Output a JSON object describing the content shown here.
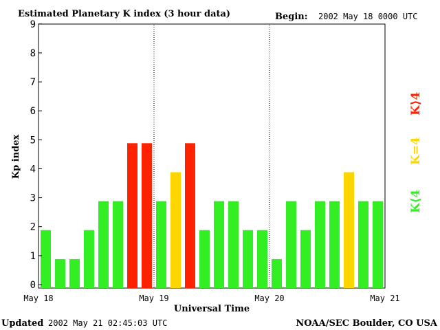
{
  "chart_data": {
    "type": "bar",
    "title": "Estimated Planetary K index (3 hour data)",
    "begin_label": "Begin:",
    "begin_value": "2002 May 18 0000 UTC",
    "ylabel": "Kp index",
    "xlabel": "Universal Time",
    "ylim": [
      0,
      9
    ],
    "yticks": [
      "0",
      "1",
      "2",
      "3",
      "4",
      "5",
      "6",
      "7",
      "8",
      "9"
    ],
    "day_labels": [
      "May 18",
      "May 19",
      "May 20",
      "May 21"
    ],
    "values": [
      2,
      1,
      1,
      2,
      3,
      3,
      5,
      5,
      3,
      4,
      5,
      2,
      3,
      3,
      2,
      2,
      1,
      3,
      2,
      3,
      3,
      4,
      3,
      3
    ],
    "grid": false,
    "legend_placement": "right",
    "legend": [
      {
        "label": "K⟨4",
        "color": "#33ee22"
      },
      {
        "label": "K=4",
        "color": "#ffd500"
      },
      {
        "label": "K⟩4",
        "color": "#ff2200"
      }
    ],
    "colors": {
      "low": "#33ee22",
      "equal": "#ffd500",
      "high": "#ff2200"
    }
  },
  "footer": {
    "updated_label": "Updated",
    "updated_value": "2002 May 21 02:45:03 UTC",
    "credit": "NOAA/SEC Boulder, CO USA"
  }
}
